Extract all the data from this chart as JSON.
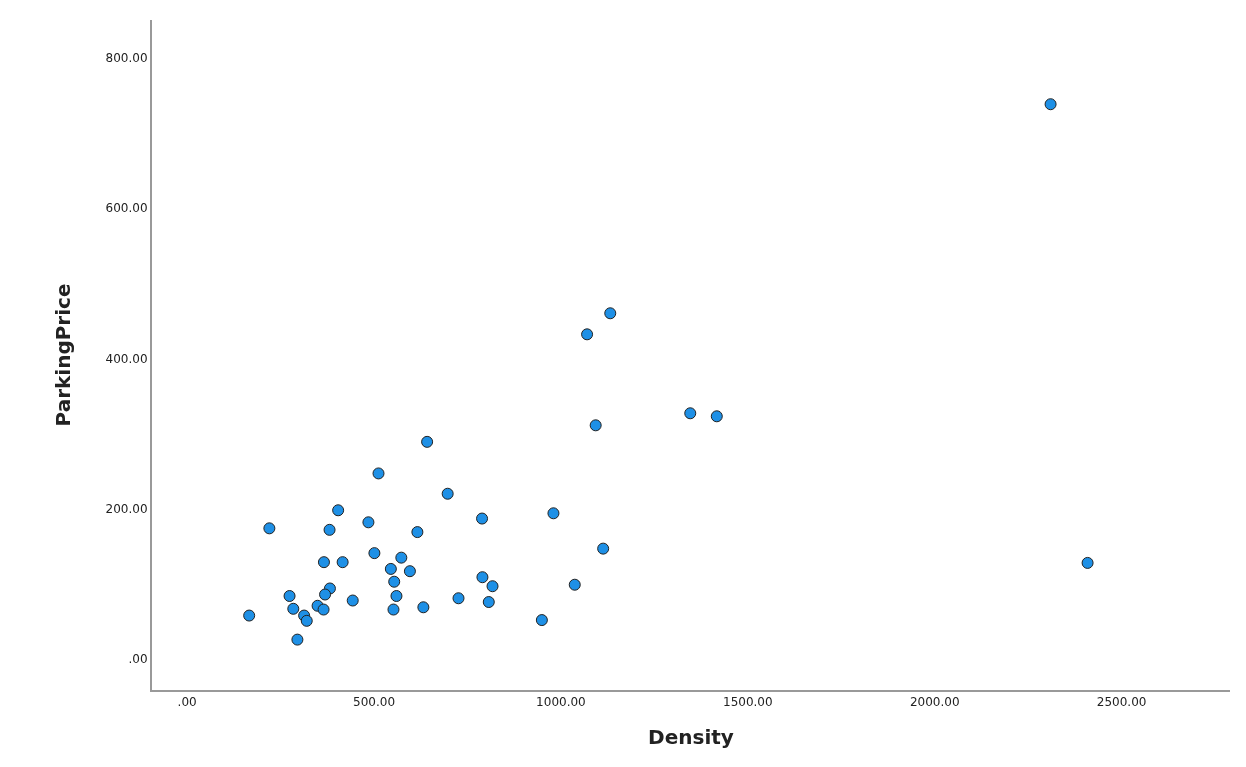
{
  "chart_data": {
    "type": "scatter",
    "xlabel": "Density",
    "ylabel": "ParkingPrice",
    "x": [
      166,
      220,
      274,
      284,
      313,
      320,
      295,
      366,
      416,
      381,
      404,
      512,
      642,
      485,
      501,
      382,
      369,
      349,
      365,
      443,
      545,
      573,
      596,
      554,
      560,
      552,
      632,
      697,
      616,
      726,
      789,
      790,
      817,
      807,
      949,
      980,
      1037,
      1113,
      1093,
      1132,
      1070,
      1346,
      1417,
      2310,
      2409
    ],
    "values": [
      58,
      174,
      84,
      67,
      58,
      51,
      26,
      129,
      129,
      172,
      198,
      247,
      289,
      182,
      141,
      94,
      86,
      71,
      66,
      78,
      120,
      135,
      117,
      103,
      84,
      66,
      69,
      220,
      169,
      81,
      187,
      109,
      97,
      76,
      52,
      194,
      99,
      147,
      311,
      460,
      432,
      327,
      323,
      738,
      128
    ],
    "color": "#1e90e6",
    "marker": "circle",
    "grid": false,
    "xlim": [
      -94,
      2790
    ],
    "ylim": [
      -41,
      850
    ],
    "xticks": [
      {
        "value": 0,
        "label": ".00"
      },
      {
        "value": 500,
        "label": "500.00"
      },
      {
        "value": 1000,
        "label": "1000.00"
      },
      {
        "value": 1500,
        "label": "1500.00"
      },
      {
        "value": 2000,
        "label": "2000.00"
      },
      {
        "value": 2500,
        "label": "2500.00"
      }
    ],
    "yticks": [
      {
        "value": 0,
        "label": ".00"
      },
      {
        "value": 200,
        "label": "200.00"
      },
      {
        "value": 400,
        "label": "400.00"
      },
      {
        "value": 600,
        "label": "600.00"
      },
      {
        "value": 800,
        "label": "800.00"
      }
    ]
  }
}
